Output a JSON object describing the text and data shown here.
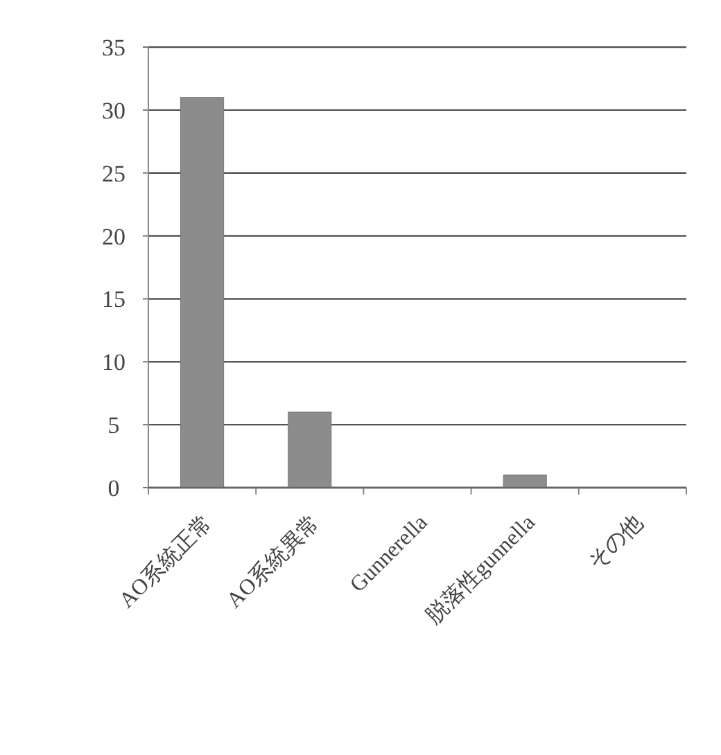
{
  "chart_data": {
    "type": "bar",
    "categories": [
      "AO系統正常",
      "AO系統異常",
      "Gunnerella",
      "脱落性gunnella",
      "その他"
    ],
    "values": [
      31,
      6,
      0,
      1,
      0
    ],
    "color": "#8c8c8c",
    "ylim": [
      0,
      35
    ],
    "yticks": [
      0,
      5,
      10,
      15,
      20,
      25,
      30,
      35
    ],
    "grid": "y"
  }
}
